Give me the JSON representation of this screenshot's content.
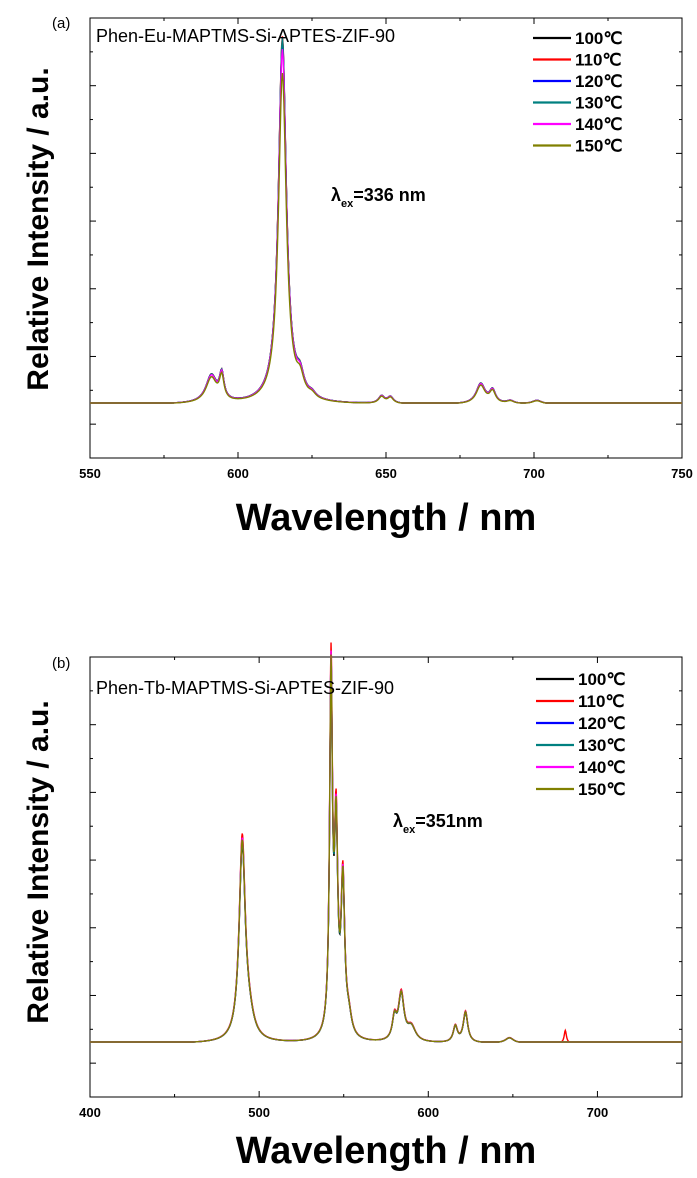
{
  "chart_data": [
    {
      "type": "line",
      "panel_label": "(a)",
      "title": "Phen-Eu-MAPTMS-Si-APTES-ZIF-90",
      "annotation": {
        "lambda": "λ",
        "sub": "ex",
        "text": "=336 nm"
      },
      "xlabel": "Wavelength / nm",
      "ylabel": "Relative Intensity / a.u.",
      "xlim": [
        550,
        750
      ],
      "ylim": [
        -0.15,
        1.05
      ],
      "x_ticks": [
        550,
        600,
        650,
        700,
        750
      ],
      "y_ticks_labeled": false,
      "grid": false,
      "legend_position": "top-right",
      "profile": {
        "baseline": 0,
        "peaks": [
          {
            "center": 591,
            "height": 0.075,
            "width": 2.2
          },
          {
            "center": 594.5,
            "height": 0.07,
            "width": 0.9
          },
          {
            "center": 615,
            "height": 1.0,
            "width": 1.6
          },
          {
            "center": 621,
            "height": 0.05,
            "width": 1.5
          },
          {
            "center": 625,
            "height": 0.012,
            "width": 1.5
          },
          {
            "center": 648.5,
            "height": 0.02,
            "width": 1.2
          },
          {
            "center": 651.5,
            "height": 0.018,
            "width": 1.2
          },
          {
            "center": 682,
            "height": 0.055,
            "width": 1.8
          },
          {
            "center": 686,
            "height": 0.035,
            "width": 1.2
          },
          {
            "center": 692,
            "height": 0.008,
            "width": 1.5
          },
          {
            "center": 701,
            "height": 0.01,
            "width": 2.0
          }
        ]
      },
      "series": [
        {
          "name": "100℃",
          "color": "#000000",
          "scale": 0.99
        },
        {
          "name": "110℃",
          "color": "#ff0000",
          "scale": 1.0
        },
        {
          "name": "120℃",
          "color": "#0000ff",
          "scale": 0.985
        },
        {
          "name": "130℃",
          "color": "#008080",
          "scale": 0.995
        },
        {
          "name": "140℃",
          "color": "#ff00ff",
          "scale": 0.965
        },
        {
          "name": "150℃",
          "color": "#808000",
          "scale": 0.9
        }
      ]
    },
    {
      "type": "line",
      "panel_label": "(b)",
      "title": "Phen-Tb-MAPTMS-Si-APTES-ZIF-90",
      "annotation": {
        "lambda": "λ",
        "sub": "ex",
        "text": "=351nm"
      },
      "xlabel": "Wavelength / nm",
      "ylabel": "Relative Intensity / a.u.",
      "xlim": [
        400,
        750
      ],
      "ylim": [
        -0.15,
        1.05
      ],
      "x_ticks": [
        400,
        500,
        600,
        700
      ],
      "y_ticks_labeled": false,
      "grid": false,
      "legend_position": "top-right",
      "profile": {
        "baseline": 0,
        "peaks": [
          {
            "center": 490,
            "height": 0.55,
            "width": 2.2
          },
          {
            "center": 494,
            "height": 0.05,
            "width": 3.5
          },
          {
            "center": 542.5,
            "height": 1.0,
            "width": 1.0
          },
          {
            "center": 545.5,
            "height": 0.55,
            "width": 1.2
          },
          {
            "center": 549.5,
            "height": 0.42,
            "width": 1.3
          },
          {
            "center": 553,
            "height": 0.05,
            "width": 2.0
          },
          {
            "center": 580,
            "height": 0.06,
            "width": 1.5
          },
          {
            "center": 584,
            "height": 0.13,
            "width": 2.0
          },
          {
            "center": 590,
            "height": 0.04,
            "width": 3.0
          },
          {
            "center": 616,
            "height": 0.045,
            "width": 1.5
          },
          {
            "center": 622,
            "height": 0.085,
            "width": 1.6
          },
          {
            "center": 648,
            "height": 0.015,
            "width": 3.0
          }
        ]
      },
      "series": [
        {
          "name": "100℃",
          "color": "#000000",
          "scale": 0.95
        },
        {
          "name": "110℃",
          "color": "#ff0000",
          "scale": 1.0,
          "extra_peak": {
            "center": 681,
            "height": 0.035,
            "width": 0.8
          }
        },
        {
          "name": "120℃",
          "color": "#0000ff",
          "scale": 0.97
        },
        {
          "name": "130℃",
          "color": "#008080",
          "scale": 0.96
        },
        {
          "name": "140℃",
          "color": "#ff00ff",
          "scale": 0.98
        },
        {
          "name": "150℃",
          "color": "#808000",
          "scale": 0.97
        }
      ]
    }
  ]
}
